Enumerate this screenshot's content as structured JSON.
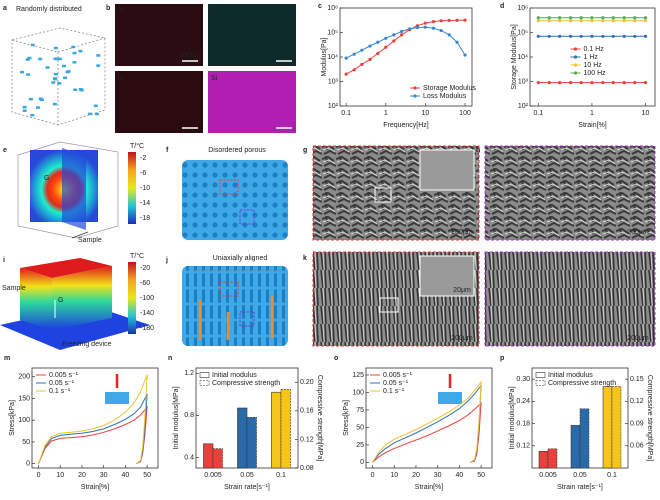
{
  "panels": {
    "a": {
      "label": "a",
      "title": "Randomly distributed"
    },
    "b": {
      "label": "b",
      "elements": [
        "Ti",
        "F",
        "N",
        "Si"
      ],
      "scale": "100μm"
    },
    "e": {
      "label": "e",
      "colorbar_title": "T/°C",
      "colorbar_ticks": [
        -2,
        -6,
        -10,
        -14,
        -18
      ],
      "gravity": "G",
      "sample": "Sample"
    },
    "f": {
      "label": "f",
      "title": "Disordered porous"
    },
    "g": {
      "label": "g",
      "scale": "200μm"
    },
    "h": {
      "label": "h",
      "scale": "200μm"
    },
    "i": {
      "label": "i",
      "colorbar_title": "T/°C",
      "colorbar_ticks": [
        -20,
        -60,
        -100,
        -140,
        -180
      ],
      "sample": "Sample",
      "gravity": "G",
      "device": "Freezing device"
    },
    "j": {
      "label": "j",
      "title": "Uniaxially aligned"
    },
    "k": {
      "label": "k",
      "scale": "200μm",
      "inset_scale": "20μm"
    },
    "l": {
      "label": "l",
      "scale": "200μm"
    }
  },
  "chart_data": [
    {
      "type": "line",
      "panel_label": "c",
      "xlabel": "Frequency[Hz]",
      "ylabel": "Modulus[Pa]",
      "xlog": true,
      "ylog": true,
      "markers": true,
      "xlim": [
        0.07,
        150
      ],
      "ylim": [
        100,
        1000000
      ],
      "xticks": [
        0.1,
        1,
        10,
        100
      ],
      "yticks": [
        {
          "value": 100,
          "label": "10²"
        },
        {
          "value": 1000,
          "label": "10³"
        },
        {
          "value": 10000,
          "label": "10⁴"
        },
        {
          "value": 100000,
          "label": "10⁵"
        },
        {
          "value": 1000000,
          "label": "10⁶"
        }
      ],
      "legend": "lower right",
      "x": [
        0.1,
        0.16,
        0.25,
        0.4,
        0.63,
        1,
        1.6,
        2.5,
        4,
        6.3,
        10,
        16,
        25,
        40,
        63,
        100
      ],
      "series": [
        {
          "name": "Storage Modulus",
          "color": "#e8413b",
          "values": [
            2000,
            3000,
            5000,
            8000,
            14000,
            25000,
            45000,
            80000,
            130000,
            190000,
            240000,
            280000,
            300000,
            310000,
            315000,
            320000
          ]
        },
        {
          "name": "Loss Modulus",
          "color": "#3a86c8",
          "values": [
            9000,
            13000,
            19000,
            28000,
            40000,
            58000,
            80000,
            110000,
            140000,
            160000,
            165000,
            150000,
            120000,
            80000,
            40000,
            12000
          ]
        }
      ]
    },
    {
      "type": "line",
      "panel_label": "d",
      "xlabel": "Strain[%]",
      "ylabel": "Storage Modulus[Pa]",
      "xlog": true,
      "ylog": true,
      "markers": true,
      "xlim": [
        0.07,
        15
      ],
      "ylim": [
        100,
        1000000
      ],
      "xticks": [
        0.1,
        1,
        10
      ],
      "yticks": [
        {
          "value": 100,
          "label": "10²"
        },
        {
          "value": 1000,
          "label": "10³"
        },
        {
          "value": 10000,
          "label": "10⁴"
        },
        {
          "value": 100000,
          "label": "10⁵"
        },
        {
          "value": 1000000,
          "label": "10⁶"
        }
      ],
      "legend": "center",
      "x": [
        0.1,
        0.16,
        0.25,
        0.4,
        0.63,
        1,
        1.6,
        2.5,
        4,
        6.3,
        10
      ],
      "series": [
        {
          "name": "0.1 Hz",
          "color": "#e8413b",
          "values": [
            900,
            900,
            900,
            900,
            900,
            900,
            900,
            900,
            900,
            900,
            900
          ]
        },
        {
          "name": "1 Hz",
          "color": "#2f6fb5",
          "values": [
            70000,
            70000,
            70000,
            70000,
            70000,
            70000,
            70000,
            70000,
            70000,
            70000,
            70000
          ]
        },
        {
          "name": "10 Hz",
          "color": "#f1c232",
          "values": [
            300000,
            300000,
            300000,
            300000,
            300000,
            300000,
            300000,
            300000,
            300000,
            300000,
            300000
          ]
        },
        {
          "name": "100 Hz",
          "color": "#4caf50",
          "values": [
            400000,
            400000,
            400000,
            400000,
            400000,
            400000,
            400000,
            400000,
            400000,
            400000,
            400000
          ]
        }
      ]
    },
    {
      "type": "line",
      "panel_label": "m",
      "xlabel": "Strain[%]",
      "ylabel": "Stress[kPa]",
      "xlim": [
        -3,
        55
      ],
      "ylim": [
        -10,
        220
      ],
      "xticks": [
        0,
        10,
        20,
        30,
        40,
        50
      ],
      "yticks": [
        0,
        50,
        100,
        150,
        200
      ],
      "legend": "upper left",
      "x": [
        0,
        3,
        6,
        10,
        15,
        20,
        25,
        30,
        35,
        40,
        44,
        47,
        50,
        49,
        48,
        47,
        45
      ],
      "series": [
        {
          "name": "0.005 s⁻¹",
          "color": "#e8413b",
          "values": [
            0,
            35,
            52,
            58,
            60,
            62,
            66,
            72,
            80,
            90,
            100,
            112,
            130,
            70,
            25,
            5,
            0
          ]
        },
        {
          "name": "0.05 s⁻¹",
          "color": "#2f6fb5",
          "values": [
            0,
            38,
            58,
            65,
            68,
            70,
            74,
            80,
            90,
            102,
            115,
            130,
            160,
            85,
            30,
            6,
            0
          ]
        },
        {
          "name": "0.1 s⁻¹",
          "color": "#f1c232",
          "values": [
            0,
            42,
            62,
            70,
            72,
            75,
            80,
            88,
            100,
            118,
            140,
            165,
            205,
            110,
            40,
            8,
            0
          ]
        }
      ]
    },
    {
      "type": "bar",
      "panel_label": "n",
      "xlabel": "Strain rate[s⁻¹]",
      "ylabel": "Initial modulus[MPa]",
      "y2label": "Compressive strength[MPa]",
      "categories": [
        "0.005",
        "0.05",
        "0.1"
      ],
      "colors": [
        "#e8413b",
        "#2a6aa8",
        "#f5c518"
      ],
      "ylim": [
        0.3,
        1.25
      ],
      "yticks": [
        0.4,
        0.8,
        1.2
      ],
      "y2lim": [
        0.08,
        0.22
      ],
      "y2ticks": [
        0.08,
        0.12,
        0.16,
        {
          "value": 0.2,
          "label": "0.20"
        }
      ],
      "legend": "upper left",
      "series": [
        {
          "name": "Initial modulus",
          "dash": false,
          "values": [
            0.53,
            0.87,
            1.02
          ]
        },
        {
          "name": "Compressive strength",
          "dash": true,
          "axis": "y2",
          "values": [
            0.107,
            0.151,
            0.19
          ]
        }
      ]
    },
    {
      "type": "line",
      "panel_label": "o",
      "xlabel": "Strain[%]",
      "ylabel": "Stress[kPa]",
      "xlim": [
        -3,
        55
      ],
      "ylim": [
        -8,
        135
      ],
      "xticks": [
        0,
        10,
        20,
        30,
        40,
        50
      ],
      "yticks": [
        0,
        25,
        50,
        75,
        100,
        125
      ],
      "legend": "upper left",
      "x": [
        0,
        3,
        6,
        10,
        15,
        20,
        25,
        30,
        35,
        40,
        44,
        47,
        50,
        49,
        48,
        47,
        45
      ],
      "series": [
        {
          "name": "0.005 s⁻¹",
          "color": "#e8413b",
          "values": [
            0,
            8,
            14,
            20,
            26,
            32,
            38,
            45,
            52,
            60,
            68,
            76,
            85,
            40,
            12,
            2,
            0
          ]
        },
        {
          "name": "0.05 s⁻¹",
          "color": "#2f6fb5",
          "values": [
            0,
            12,
            20,
            28,
            35,
            42,
            50,
            58,
            67,
            77,
            88,
            98,
            110,
            55,
            18,
            3,
            0
          ]
        },
        {
          "name": "0.1 s⁻¹",
          "color": "#f1c232",
          "values": [
            0,
            15,
            25,
            33,
            40,
            47,
            55,
            63,
            72,
            82,
            92,
            103,
            115,
            58,
            20,
            4,
            0
          ]
        }
      ]
    },
    {
      "type": "bar",
      "panel_label": "p",
      "xlabel": "Strain rate[s⁻¹]",
      "ylabel": "Initial modulus[MPa]",
      "y2label": "Compressive strength[MPa]",
      "categories": [
        "0.005",
        "0.05",
        "0.1"
      ],
      "colors": [
        "#e8413b",
        "#2a6aa8",
        "#f5c518"
      ],
      "ylim": [
        0.06,
        0.33
      ],
      "yticks": [
        0.12,
        0.18,
        0.24,
        {
          "value": 0.3,
          "label": "0.30"
        }
      ],
      "y2lim": [
        0.03,
        0.165
      ],
      "y2ticks": [
        0.06,
        0.09,
        0.12,
        0.15
      ],
      "legend": "upper left",
      "series": [
        {
          "name": "Initial modulus",
          "dash": false,
          "values": [
            0.105,
            0.175,
            0.28
          ]
        },
        {
          "name": "Compressive strength",
          "dash": true,
          "axis": "y2",
          "values": [
            0.056,
            0.11,
            0.14
          ]
        }
      ]
    }
  ]
}
